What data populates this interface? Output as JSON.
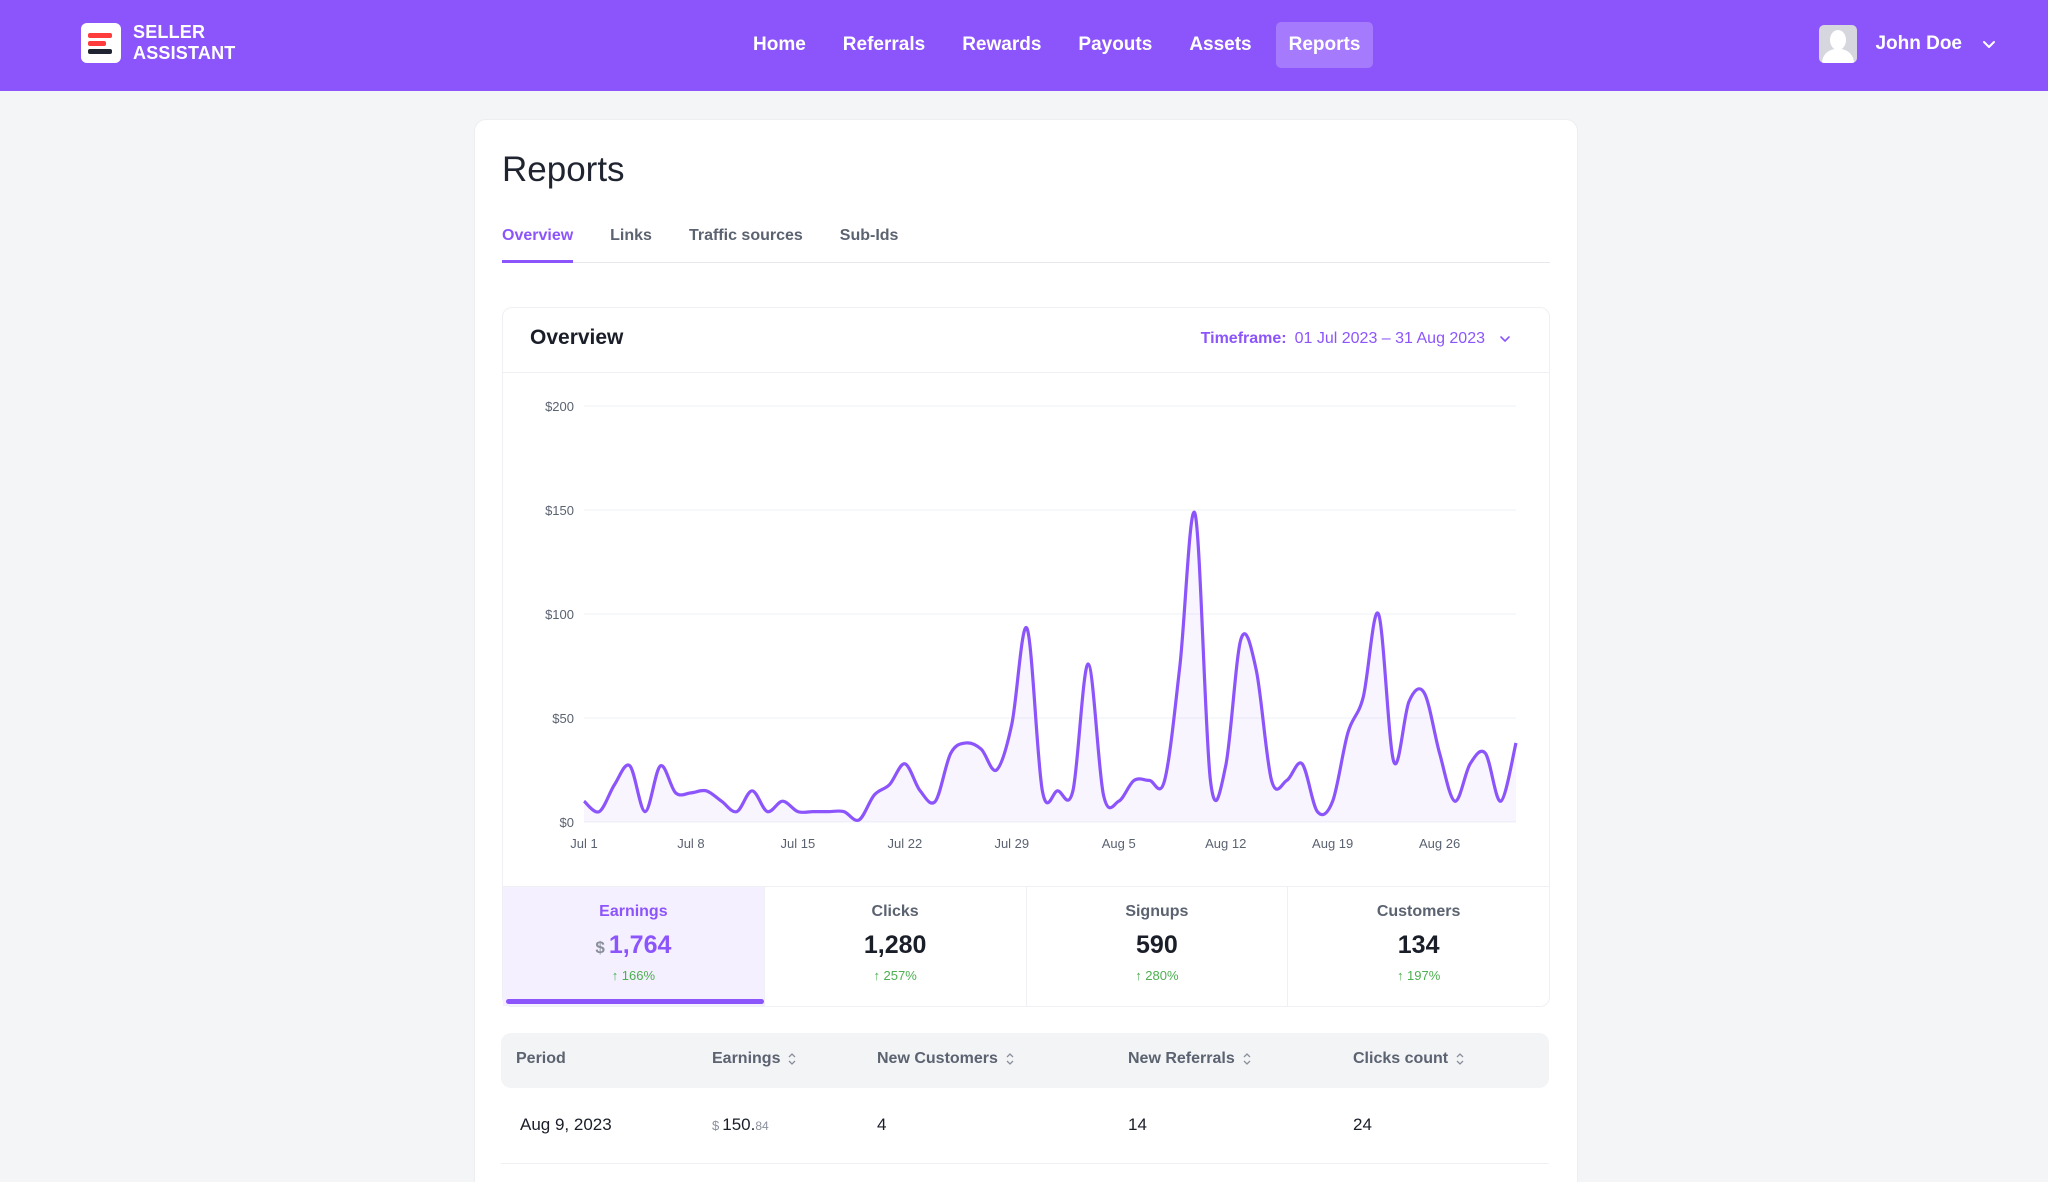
{
  "header": {
    "brand_line1": "SELLER",
    "brand_line2": "ASSISTANT",
    "nav": [
      "Home",
      "Referrals",
      "Rewards",
      "Payouts",
      "Assets",
      "Reports"
    ],
    "active_nav": "Reports",
    "user_name": "John Doe"
  },
  "page": {
    "title": "Reports",
    "tabs": [
      "Overview",
      "Links",
      "Traffic sources",
      "Sub-Ids"
    ],
    "active_tab": "Overview"
  },
  "panel": {
    "title": "Overview",
    "timeframe_label": "Timeframe:",
    "timeframe_value": "01 Jul 2023 – 31 Aug 2023"
  },
  "chart_data": {
    "type": "area",
    "x_tick_labels": [
      "Jul 1",
      "Jul 8",
      "Jul 15",
      "Jul 22",
      "Jul 29",
      "Aug 5",
      "Aug 12",
      "Aug 19",
      "Aug 26"
    ],
    "y_tick_labels": [
      "$0",
      "$50",
      "$100",
      "$150",
      "$200"
    ],
    "ylim": [
      0,
      200
    ],
    "x_start": "Jul 1",
    "x_end": "Aug 31",
    "values": [
      10,
      5,
      18,
      27,
      5,
      27,
      14,
      14,
      15,
      10,
      5,
      15,
      5,
      10,
      5,
      5,
      5,
      5,
      1,
      13,
      18,
      28,
      15,
      10,
      33,
      38,
      35,
      25,
      47,
      93,
      15,
      15,
      15,
      76,
      13,
      10,
      20,
      20,
      20,
      75,
      148,
      20,
      27,
      88,
      73,
      20,
      20,
      28,
      5,
      10,
      43,
      60,
      100,
      29,
      58,
      62,
      33,
      10,
      28,
      33,
      10,
      38
    ],
    "color": "#8c55fb",
    "grid": true
  },
  "stats": [
    {
      "label": "Earnings",
      "currency": "$",
      "value": "1,764",
      "change": "↑ 166%",
      "active": true
    },
    {
      "label": "Clicks",
      "currency": "",
      "value": "1,280",
      "change": "↑ 257%",
      "active": false
    },
    {
      "label": "Signups",
      "currency": "",
      "value": "590",
      "change": "↑ 280%",
      "active": false
    },
    {
      "label": "Customers",
      "currency": "",
      "value": "134",
      "change": "↑ 197%",
      "active": false
    }
  ],
  "table": {
    "columns": [
      "Period",
      "Earnings",
      "New Customers",
      "New Referrals",
      "Clicks count"
    ],
    "rows": [
      {
        "period": "Aug 9, 2023",
        "earnings_currency": "$",
        "earnings_whole": "150.",
        "earnings_cents": "84",
        "new_customers": "4",
        "new_referrals": "14",
        "clicks": "24"
      }
    ]
  }
}
